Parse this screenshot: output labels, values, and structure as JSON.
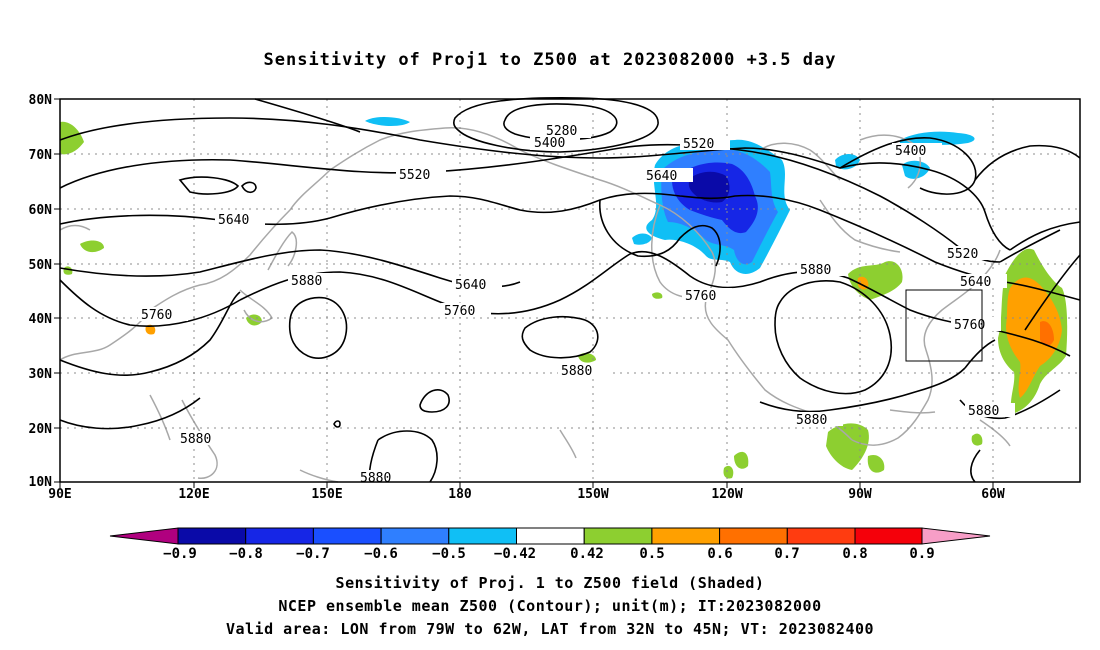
{
  "title": "Sensitivity of Proj1 to Z500 at 2023082000 +3.5 day",
  "axes": {
    "lat_labels": [
      "80N",
      "70N",
      "60N",
      "50N",
      "40N",
      "30N",
      "20N",
      "10N"
    ],
    "lon_labels": [
      "90E",
      "120E",
      "150E",
      "180",
      "150W",
      "120W",
      "90W",
      "60W"
    ]
  },
  "contour_labels": {
    "c5280": "5280",
    "c5400": "5400",
    "c5520": "5520",
    "c5640": "5640",
    "c5760": "5760",
    "c5880": "5880"
  },
  "colorbar": {
    "labels": [
      "-0.9",
      "-0.8",
      "-0.7",
      "-0.6",
      "-0.5",
      "-0.42",
      "0.42",
      "0.5",
      "0.6",
      "0.7",
      "0.8",
      "0.9"
    ],
    "colors": [
      "#b0007f",
      "#0a0aa8",
      "#1626e6",
      "#1a4fff",
      "#2f7fff",
      "#10bff5",
      "#ffffff",
      "#8dcf30",
      "#ffa000",
      "#ff7000",
      "#ff3c10",
      "#f5000a",
      "#f79ec7"
    ]
  },
  "captions": {
    "line1": "Sensitivity of Proj. 1 to Z500 field (Shaded)",
    "line2": "NCEP ensemble mean Z500 (Contour); unit(m); IT:2023082000",
    "line3": "Valid area: LON from 79W to 62W, LAT from 32N to 45N; VT: 2023082400"
  },
  "colors": {
    "coast": "#a8a8a8",
    "grid": "#8c8c8c",
    "contour": "#000000",
    "neg_dark": "#1626e6",
    "neg_mid": "#2f7fff",
    "neg_light": "#10bff5",
    "pos_green": "#8dcf30",
    "pos_orange": "#ffa000",
    "pos_dorange": "#ff7000"
  },
  "valid_area": {
    "lon_from": "79W",
    "lon_to": "62W",
    "lat_from": "32N",
    "lat_to": "45N"
  }
}
